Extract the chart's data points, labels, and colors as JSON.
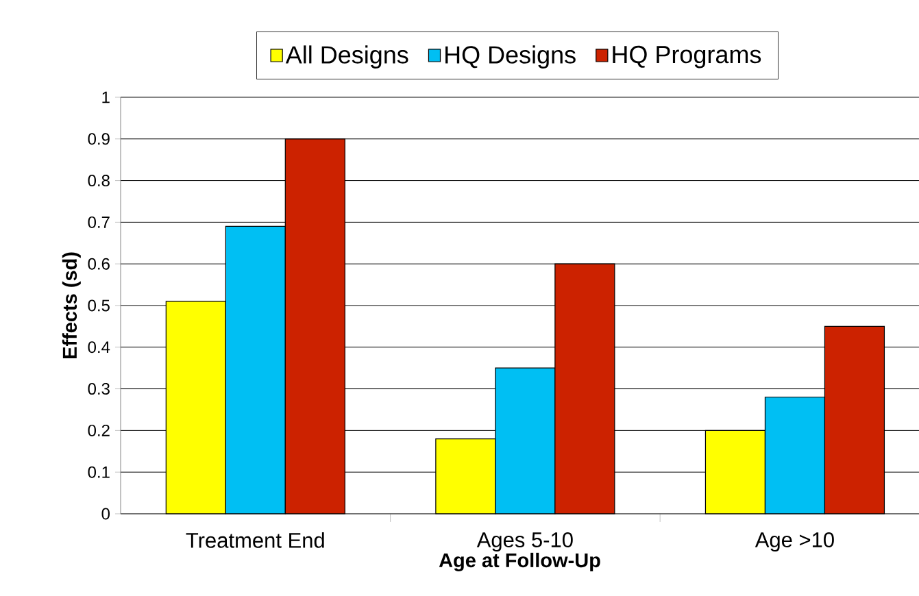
{
  "chart_data": {
    "type": "bar",
    "xlabel": "Age at Follow-Up",
    "ylabel": "Effects (sd)",
    "categories": [
      "Treatment End",
      "Ages 5-10",
      "Age >10"
    ],
    "series": [
      {
        "name": "All Designs",
        "color": "#ffff00",
        "values": [
          0.51,
          0.18,
          0.2
        ]
      },
      {
        "name": "HQ Designs",
        "color": "#00bff3",
        "values": [
          0.69,
          0.35,
          0.28
        ]
      },
      {
        "name": "HQ Programs",
        "color": "#cc2200",
        "values": [
          0.9,
          0.6,
          0.45
        ]
      }
    ],
    "ylim": [
      0,
      1
    ],
    "yticks": [
      0,
      0.1,
      0.2,
      0.3,
      0.4,
      0.5,
      0.6,
      0.7,
      0.8,
      0.9,
      1
    ],
    "grid": "y",
    "legend": "top"
  }
}
